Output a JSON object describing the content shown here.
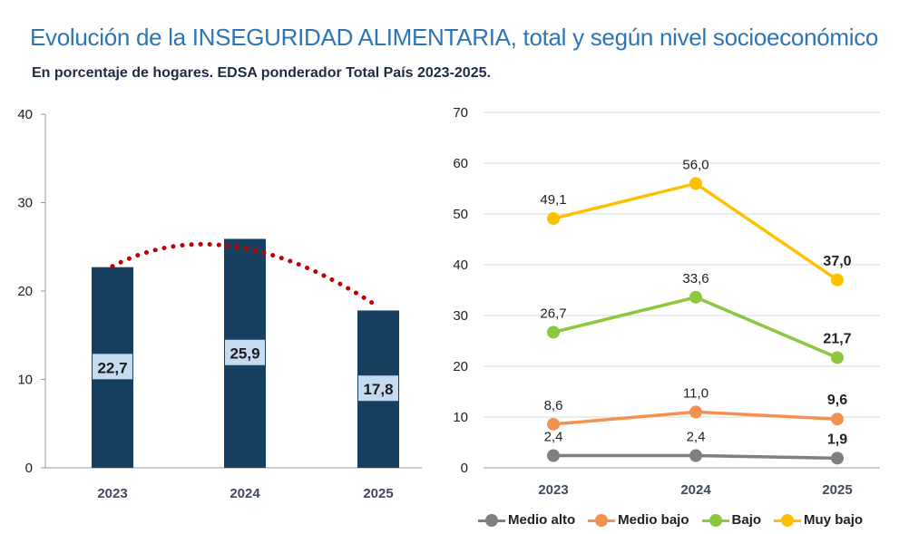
{
  "title": "Evolución de la INSEGURIDAD ALIMENTARIA, total y según nivel socioeconómico",
  "subtitle": "En porcentaje de hogares. EDSA ponderador Total País 2023-2025.",
  "chart_data": [
    {
      "type": "bar",
      "title": "Total",
      "categories": [
        "2023",
        "2024",
        "2025"
      ],
      "values": [
        22.7,
        25.9,
        17.8
      ],
      "value_labels": [
        "22,7",
        "25,9",
        "17,8"
      ],
      "ylim": [
        0,
        40
      ],
      "yticks": [
        "0",
        "10",
        "20",
        "30",
        "40"
      ],
      "ytick_values": [
        0,
        10,
        20,
        30,
        40
      ],
      "bar_color": "#173f5f",
      "label_bg": "#c5dcf0",
      "trend": {
        "style": "dotted",
        "color": "#c00000"
      },
      "grid": false
    },
    {
      "type": "line",
      "title": "Según nivel socioeconómico",
      "categories": [
        "2023",
        "2024",
        "2025"
      ],
      "ylim": [
        0,
        70
      ],
      "yticks": [
        "0",
        "10",
        "20",
        "30",
        "40",
        "50",
        "60",
        "70"
      ],
      "ytick_values": [
        0,
        10,
        20,
        30,
        40,
        50,
        60,
        70
      ],
      "grid": true,
      "legend_position": "bottom",
      "series": [
        {
          "name": "Medio alto",
          "values": [
            2.4,
            2.4,
            1.9
          ],
          "labels": [
            "2,4",
            "2,4",
            "1,9"
          ],
          "color": "#7f7f7f"
        },
        {
          "name": "Medio bajo",
          "values": [
            8.6,
            11.0,
            9.6
          ],
          "labels": [
            "8,6",
            "11,0",
            "9,6"
          ],
          "color": "#f39250"
        },
        {
          "name": "Bajo",
          "values": [
            26.7,
            33.6,
            21.7
          ],
          "labels": [
            "26,7",
            "33,6",
            "21,7"
          ],
          "color": "#8dc63f"
        },
        {
          "name": "Muy bajo",
          "values": [
            49.1,
            56.0,
            37.0
          ],
          "labels": [
            "49,1",
            "56,0",
            "37,0"
          ],
          "color": "#ffc000"
        }
      ]
    }
  ]
}
